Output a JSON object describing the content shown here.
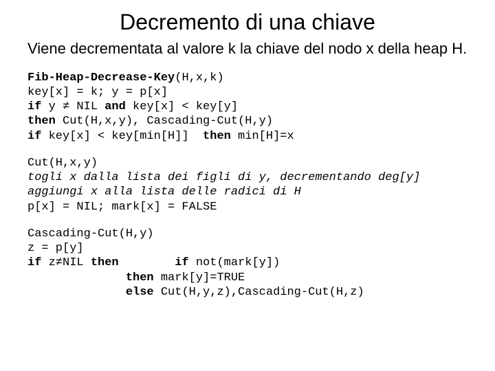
{
  "title": "Decremento di una chiave",
  "subtitle": "Viene decrementata al valore k la chiave del nodo x della heap H.",
  "block1": {
    "l1a": "Fib-Heap-Decrease-Key",
    "l1b": "(H,x,k)",
    "l2": "key[x] = k; y = p[x]",
    "l3a": "if",
    "l3b": " y ≠ NIL ",
    "l3c": "and",
    "l3d": " key[x] < key[y]",
    "l4a": "then",
    "l4b": " Cut(H,x,y), Cascading-Cut(H,y)",
    "l5a": "if",
    "l5b": " key[x] < key[min[H]]  ",
    "l5c": "then",
    "l5d": " min[H]=x"
  },
  "block2": {
    "l1": "Cut(H,x,y)",
    "l2": "togli x dalla lista dei figli di y, decrementando deg[y]",
    "l3": "aggiungi x alla lista delle radici di H",
    "l4": "p[x] = NIL; mark[x] = FALSE"
  },
  "block3": {
    "l1": "Cascading-Cut(H,y)",
    "l2": "z = p[y]",
    "l3a": "if",
    "l3b": " z≠NIL ",
    "l3c": "then        if",
    "l3d": " not(mark[y])",
    "l4a": "              then",
    "l4b": " mark[y]=TRUE",
    "l5a": "              else",
    "l5b": " Cut(H,y,z),Cascading-Cut(H,z)"
  }
}
